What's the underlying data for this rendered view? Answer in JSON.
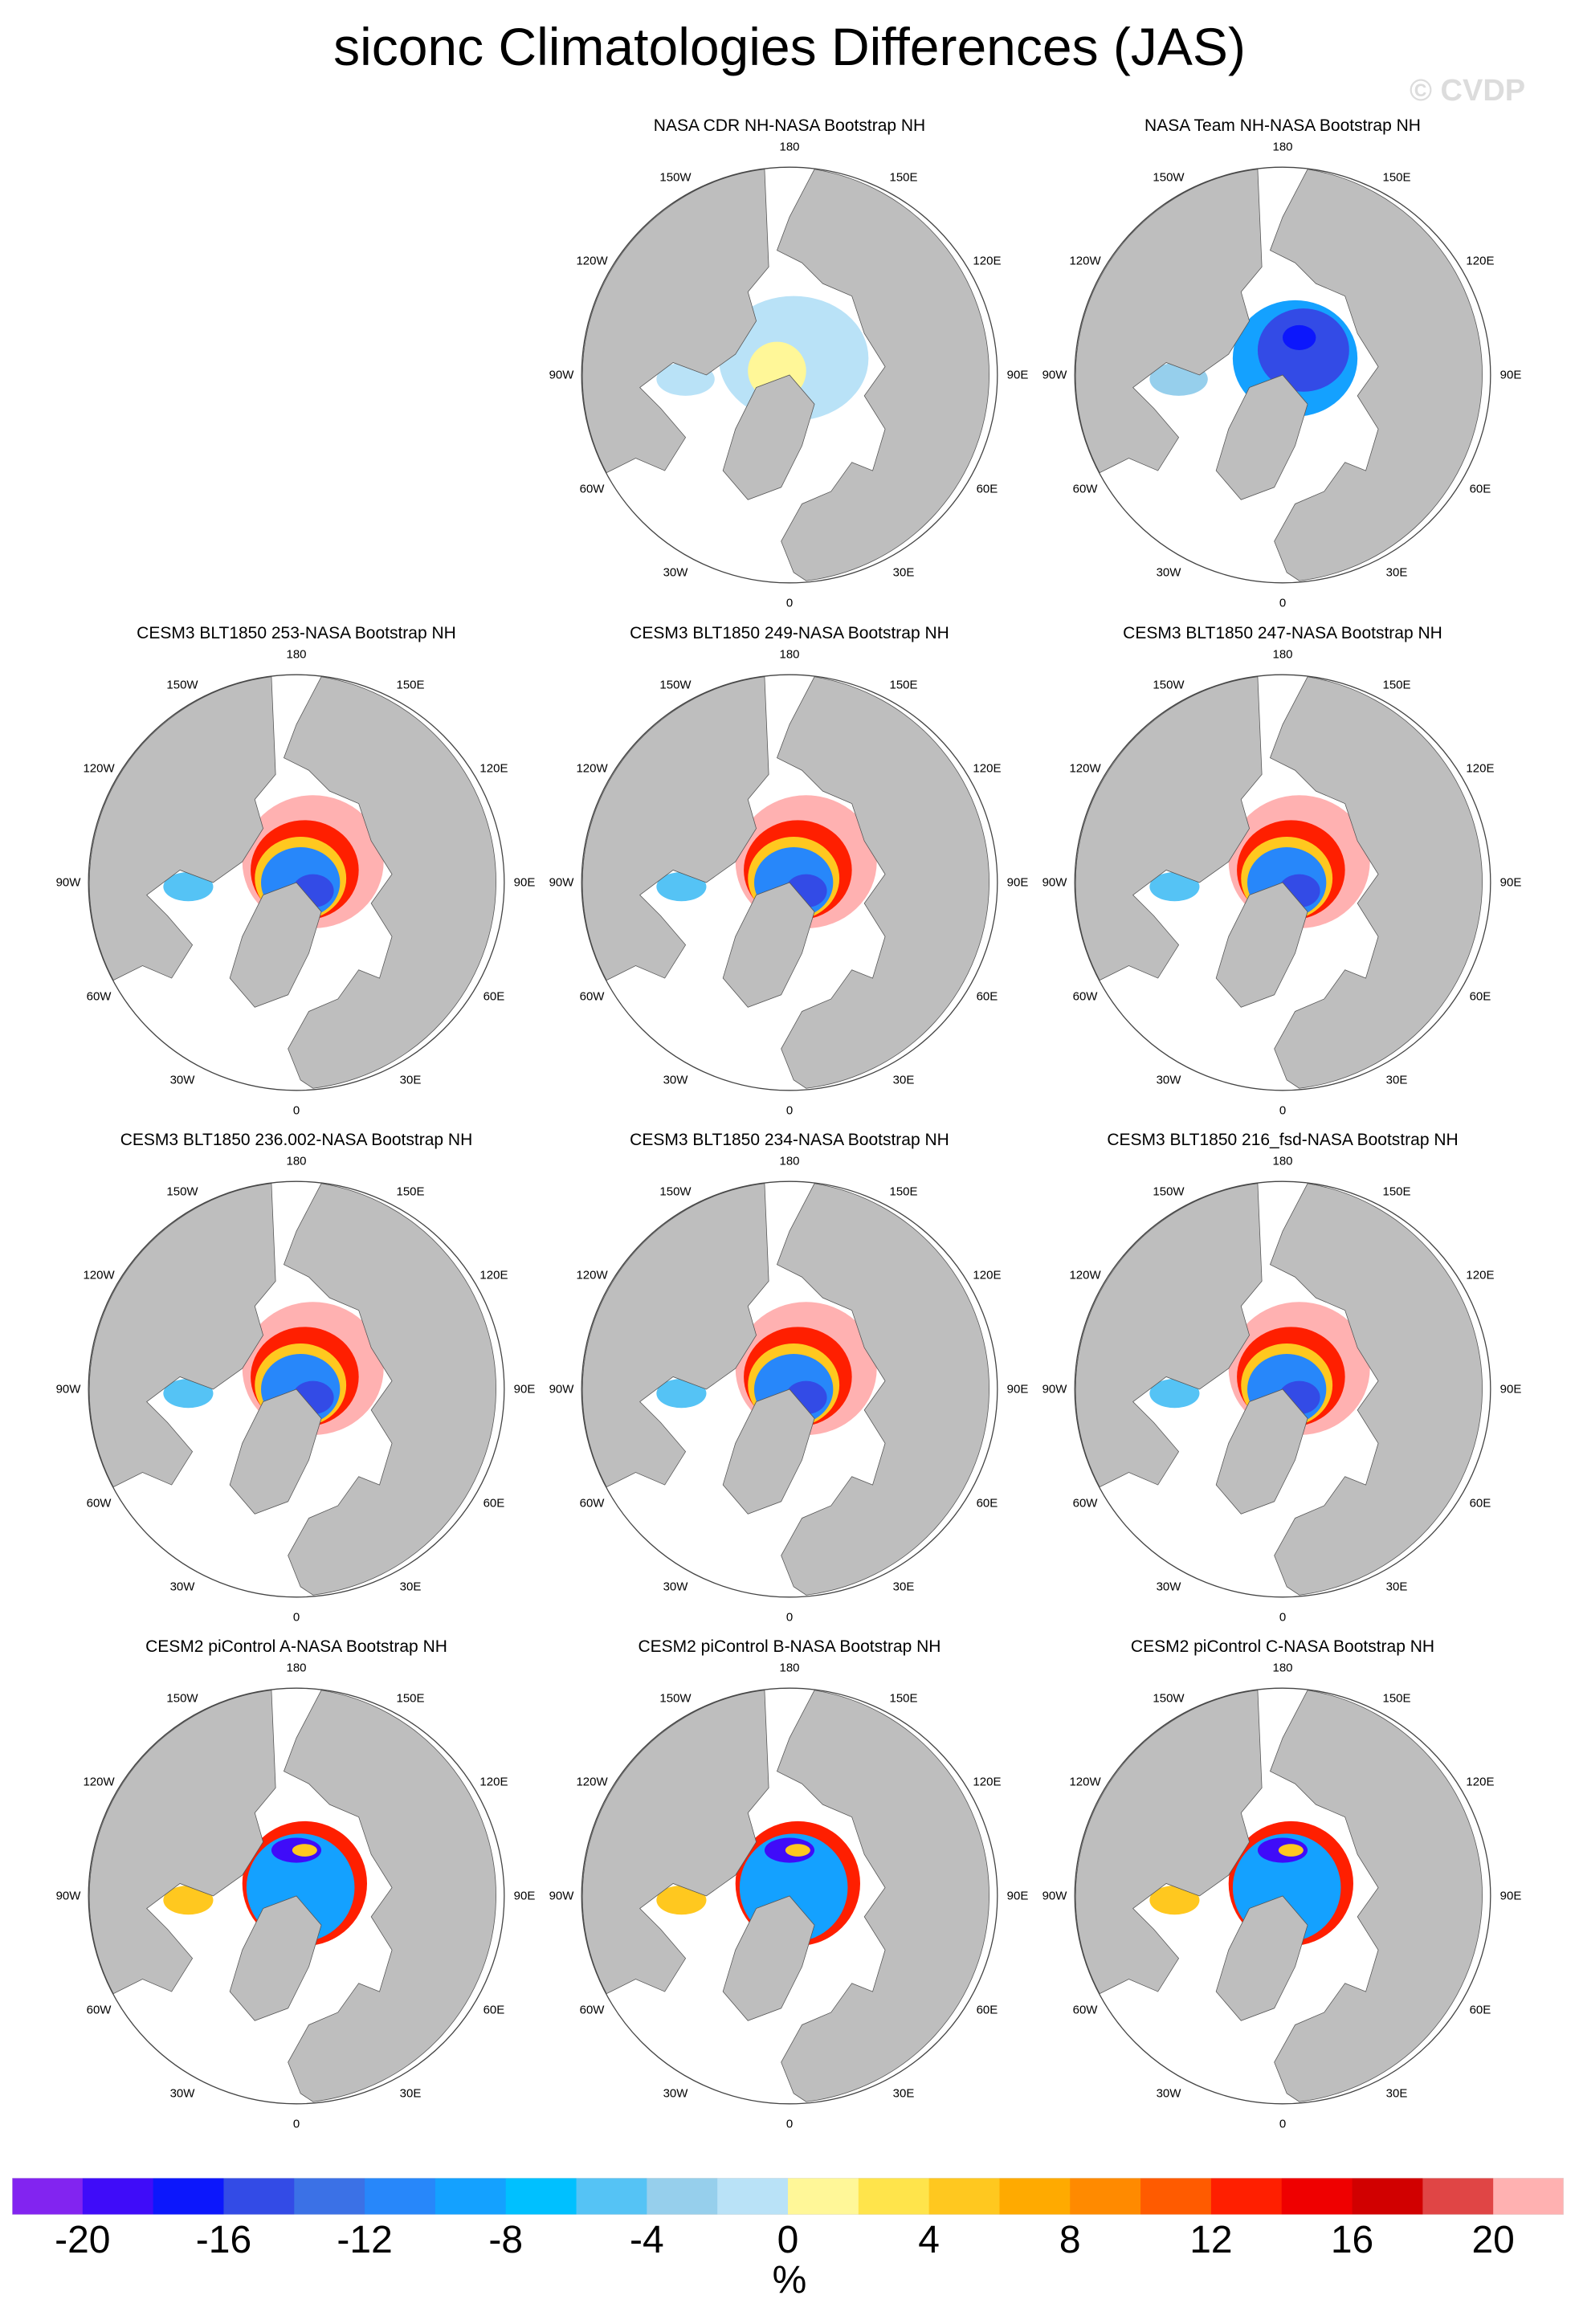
{
  "title": "siconc Climatologies Differences (JAS)",
  "watermark": "© CVDP",
  "chart_data": {
    "type": "heatmap",
    "projection": "north-polar-stereographic",
    "lon_labels": [
      "180",
      "150E",
      "120E",
      "90E",
      "60E",
      "30E",
      "0",
      "30W",
      "60W",
      "90W",
      "120W",
      "150W"
    ],
    "land_color": "#bebebe",
    "panels": [
      {
        "row": 0,
        "col": 1,
        "title": "NASA CDR NH-NASA Bootstrap NH",
        "pattern": "cdr",
        "colors": [
          "#b9e2f7",
          "#fff798"
        ]
      },
      {
        "row": 0,
        "col": 2,
        "title": "NASA Team NH-NASA Bootstrap NH",
        "pattern": "team",
        "colors": [
          "#14a1ff",
          "#334be6",
          "#0c17fc"
        ]
      },
      {
        "row": 1,
        "col": 0,
        "title": "CESM3 BLT1850 253-NASA Bootstrap NH",
        "pattern": "cesm3",
        "colors": [
          "#ffb1b1",
          "#ff1f00",
          "#ffc81f",
          "#2787fa",
          "#334be6"
        ]
      },
      {
        "row": 1,
        "col": 1,
        "title": "CESM3 BLT1850 249-NASA Bootstrap NH",
        "pattern": "cesm3",
        "colors": [
          "#ffb1b1",
          "#ff1f00",
          "#ffc81f",
          "#2787fa",
          "#334be6"
        ]
      },
      {
        "row": 1,
        "col": 2,
        "title": "CESM3 BLT1850 247-NASA Bootstrap NH",
        "pattern": "cesm3",
        "colors": [
          "#ffb1b1",
          "#ff1f00",
          "#ffc81f",
          "#2787fa",
          "#334be6"
        ]
      },
      {
        "row": 2,
        "col": 0,
        "title": "CESM3 BLT1850 236.002-NASA Bootstrap NH",
        "pattern": "cesm3",
        "colors": [
          "#ffb1b1",
          "#ff1f00",
          "#ffc81f",
          "#2787fa",
          "#334be6"
        ]
      },
      {
        "row": 2,
        "col": 1,
        "title": "CESM3 BLT1850 234-NASA Bootstrap NH",
        "pattern": "cesm3",
        "colors": [
          "#ffb1b1",
          "#ff1f00",
          "#ffc81f",
          "#2787fa",
          "#334be6"
        ]
      },
      {
        "row": 2,
        "col": 2,
        "title": "CESM3 BLT1850 216_fsd-NASA Bootstrap NH",
        "pattern": "cesm3",
        "colors": [
          "#ffb1b1",
          "#ff1f00",
          "#ffc81f",
          "#2787fa",
          "#334be6"
        ]
      },
      {
        "row": 3,
        "col": 0,
        "title": "CESM2 piControl A-NASA Bootstrap NH",
        "pattern": "cesm2",
        "colors": [
          "#ff1f00",
          "#ffc81f",
          "#14a1ff",
          "#3f0cf9"
        ]
      },
      {
        "row": 3,
        "col": 1,
        "title": "CESM2 piControl B-NASA Bootstrap NH",
        "pattern": "cesm2",
        "colors": [
          "#ff1f00",
          "#ffc81f",
          "#14a1ff",
          "#3f0cf9"
        ]
      },
      {
        "row": 3,
        "col": 2,
        "title": "CESM2 piControl C-NASA Bootstrap NH",
        "pattern": "cesm2",
        "colors": [
          "#ff1f00",
          "#ffc81f",
          "#14a1ff",
          "#3f0cf9"
        ]
      }
    ],
    "colorbar": {
      "levels": [
        -20,
        -18,
        -16,
        -14,
        -12,
        -10,
        -8,
        -6,
        -4,
        -2,
        0,
        2,
        4,
        6,
        8,
        10,
        12,
        14,
        16,
        18,
        20
      ],
      "tick_labels": [
        "-20",
        "-16",
        "-12",
        "-8",
        "-4",
        "0",
        "4",
        "8",
        "12",
        "16",
        "20"
      ],
      "colors": [
        "#8224f0",
        "#3f0cf9",
        "#0c17fc",
        "#334be6",
        "#3b71e6",
        "#2787fa",
        "#14a1ff",
        "#00c0ff",
        "#55c3f5",
        "#96cfec",
        "#b9e2f7",
        "#fff798",
        "#ffe44b",
        "#ffc81f",
        "#ffaa00",
        "#ff8a00",
        "#ff5b00",
        "#ff1f00",
        "#ef0000",
        "#d10000",
        "#e04545",
        "#ffb1b1"
      ],
      "unit": "%"
    }
  }
}
